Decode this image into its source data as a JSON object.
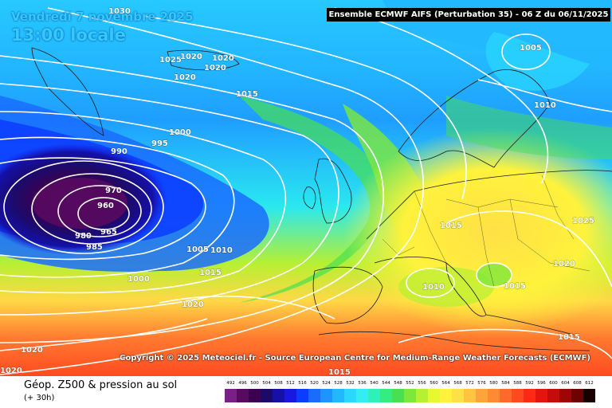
{
  "header": {
    "title": "Ensemble ECMWF AIFS  (Perturbation 35)  -  06 Z du 06/11/2025",
    "date_line": "Vendredi 7 novembre 2025",
    "time_line": "13:00 locale"
  },
  "copyright": "Copyright © 2025 Meteociel.fr - Source European Centre for Medium-Range Weather Forecasts (ECMWF)",
  "footer": {
    "title": "Géop. Z500 & pression au sol",
    "subtitle": "(+ 30h)"
  },
  "legend": {
    "levels": [
      "492",
      "496",
      "500",
      "504",
      "508",
      "512",
      "516",
      "520",
      "524",
      "528",
      "532",
      "536",
      "540",
      "544",
      "548",
      "552",
      "556",
      "560",
      "564",
      "568",
      "572",
      "576",
      "580",
      "584",
      "588",
      "592",
      "596",
      "600",
      "604",
      "608",
      "612"
    ],
    "colors": [
      "#7a1e88",
      "#560a60",
      "#3c0050",
      "#1c0a6a",
      "#1410a8",
      "#1818e0",
      "#0c3cff",
      "#1a6cff",
      "#1e94ff",
      "#22b8ff",
      "#2ad8ff",
      "#32eef0",
      "#2ef0b8",
      "#34ec80",
      "#48e050",
      "#7ee83a",
      "#b6f032",
      "#e6f830",
      "#fff23c",
      "#ffe046",
      "#ffc440",
      "#ffa43a",
      "#ff8a34",
      "#ff6a2a",
      "#ff4a20",
      "#ff2a16",
      "#e6140e",
      "#c40c0a",
      "#9e0606",
      "#6e0202",
      "#180000"
    ]
  },
  "isobar_labels": [
    "1030",
    "1025",
    "1020",
    "1020",
    "1020",
    "1020",
    "1015",
    "1000",
    "995",
    "990",
    "970",
    "960",
    "965",
    "980",
    "985",
    "1005",
    "1010",
    "1015",
    "1000",
    "1020",
    "1020",
    "1020",
    "1005",
    "1010",
    "1015",
    "1025",
    "1020",
    "1010",
    "1015",
    "1015",
    "1015"
  ],
  "icons": {
    "low_center": "low-pressure-center"
  }
}
